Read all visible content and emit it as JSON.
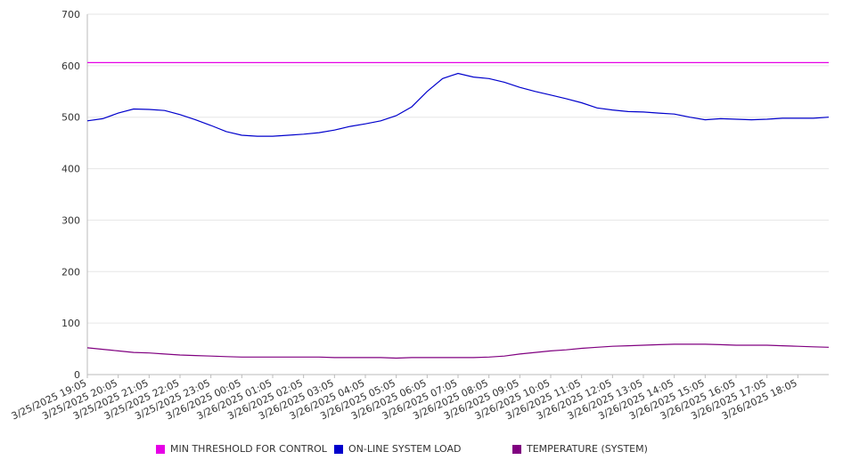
{
  "chart_data": {
    "type": "line",
    "title": "",
    "xlabel": "",
    "ylabel": "",
    "ylim": [
      0,
      700
    ],
    "yticks": [
      0,
      100,
      200,
      300,
      400,
      500,
      600,
      700
    ],
    "grid": true,
    "legend_position": "bottom",
    "x_tick_labels": [
      "3/25/2025 19:05",
      "3/25/2025 20:05",
      "3/25/2025 21:05",
      "3/25/2025 22:05",
      "3/25/2025 23:05",
      "3/26/2025 00:05",
      "3/26/2025 01:05",
      "3/26/2025 02:05",
      "3/26/2025 03:05",
      "3/26/2025 04:05",
      "3/26/2025 05:05",
      "3/26/2025 06:05",
      "3/26/2025 07:05",
      "3/26/2025 08:05",
      "3/26/2025 09:05",
      "3/26/2025 10:05",
      "3/26/2025 11:05",
      "3/26/2025 12:05",
      "3/26/2025 13:05",
      "3/26/2025 14:05",
      "3/26/2025 15:05",
      "3/26/2025 16:05",
      "3/26/2025 17:05",
      "3/26/2025 18:05"
    ],
    "x": [
      "3/25/2025 19:05",
      "3/25/2025 19:35",
      "3/25/2025 20:05",
      "3/25/2025 20:35",
      "3/25/2025 21:05",
      "3/25/2025 21:35",
      "3/25/2025 22:05",
      "3/25/2025 22:35",
      "3/25/2025 23:05",
      "3/25/2025 23:35",
      "3/26/2025 00:05",
      "3/26/2025 00:35",
      "3/26/2025 01:05",
      "3/26/2025 01:35",
      "3/26/2025 02:05",
      "3/26/2025 02:35",
      "3/26/2025 03:05",
      "3/26/2025 03:35",
      "3/26/2025 04:05",
      "3/26/2025 04:35",
      "3/26/2025 05:05",
      "3/26/2025 05:35",
      "3/26/2025 06:05",
      "3/26/2025 06:35",
      "3/26/2025 07:05",
      "3/26/2025 07:35",
      "3/26/2025 08:05",
      "3/26/2025 08:35",
      "3/26/2025 09:05",
      "3/26/2025 09:35",
      "3/26/2025 10:05",
      "3/26/2025 10:35",
      "3/26/2025 11:05",
      "3/26/2025 11:35",
      "3/26/2025 12:05",
      "3/26/2025 12:35",
      "3/26/2025 13:05",
      "3/26/2025 13:35",
      "3/26/2025 14:05",
      "3/26/2025 14:35",
      "3/26/2025 15:05",
      "3/26/2025 15:35",
      "3/26/2025 16:05",
      "3/26/2025 16:35",
      "3/26/2025 17:05",
      "3/26/2025 17:35",
      "3/26/2025 18:05",
      "3/26/2025 18:35",
      "3/26/2025 19:05"
    ],
    "series": [
      {
        "name": "MIN THRESHOLD FOR CONTROL",
        "color": "#e600e6",
        "values": [
          606,
          606,
          606,
          606,
          606,
          606,
          606,
          606,
          606,
          606,
          606,
          606,
          606,
          606,
          606,
          606,
          606,
          606,
          606,
          606,
          606,
          606,
          606,
          606,
          606,
          606,
          606,
          606,
          606,
          606,
          606,
          606,
          606,
          606,
          606,
          606,
          606,
          606,
          606,
          606,
          606,
          606,
          606,
          606,
          606,
          606,
          606,
          606,
          606
        ]
      },
      {
        "name": "ON-LINE SYSTEM LOAD",
        "color": "#0000cc",
        "values": [
          493,
          497,
          508,
          516,
          515,
          513,
          505,
          495,
          484,
          472,
          465,
          463,
          463,
          465,
          467,
          470,
          475,
          482,
          487,
          493,
          503,
          520,
          550,
          575,
          585,
          578,
          575,
          568,
          558,
          550,
          543,
          536,
          528,
          518,
          514,
          511,
          510,
          508,
          506,
          500,
          495,
          497,
          496,
          495,
          496,
          498,
          498,
          498,
          500
        ]
      },
      {
        "name": "TEMPERATURE (SYSTEM)",
        "color": "#800080",
        "values": [
          52,
          49,
          46,
          43,
          42,
          40,
          38,
          37,
          36,
          35,
          34,
          34,
          34,
          34,
          34,
          34,
          33,
          33,
          33,
          33,
          32,
          33,
          33,
          33,
          33,
          33,
          34,
          36,
          40,
          43,
          46,
          48,
          51,
          53,
          55,
          56,
          57,
          58,
          59,
          59,
          59,
          58,
          57,
          57,
          57,
          56,
          55,
          54,
          53
        ]
      }
    ]
  }
}
